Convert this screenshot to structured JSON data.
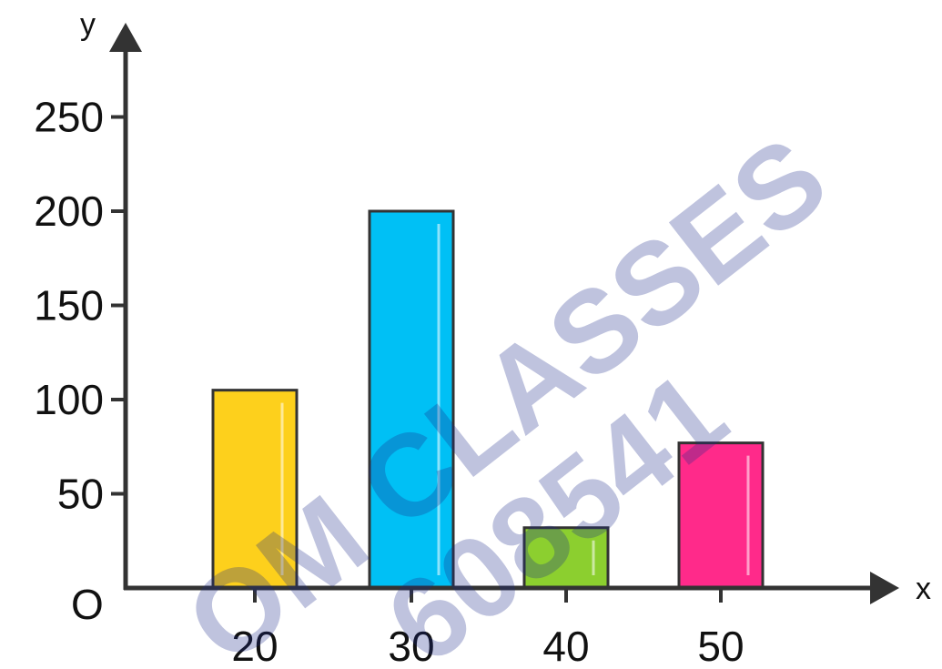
{
  "chart_data": {
    "type": "bar",
    "categories": [
      "20",
      "30",
      "40",
      "50"
    ],
    "values": [
      105,
      200,
      32,
      77
    ],
    "colors": [
      "#fdd01c",
      "#00c0f5",
      "#8ccf2f",
      "#ff2a8a"
    ],
    "xlabel": "x",
    "ylabel": "y",
    "origin_label": "O",
    "yticks": [
      50,
      100,
      150,
      200,
      250
    ],
    "ylim": [
      0,
      280
    ],
    "grid": false
  },
  "watermark": {
    "line1": "OM CLASSES",
    "line2": "608541"
  }
}
